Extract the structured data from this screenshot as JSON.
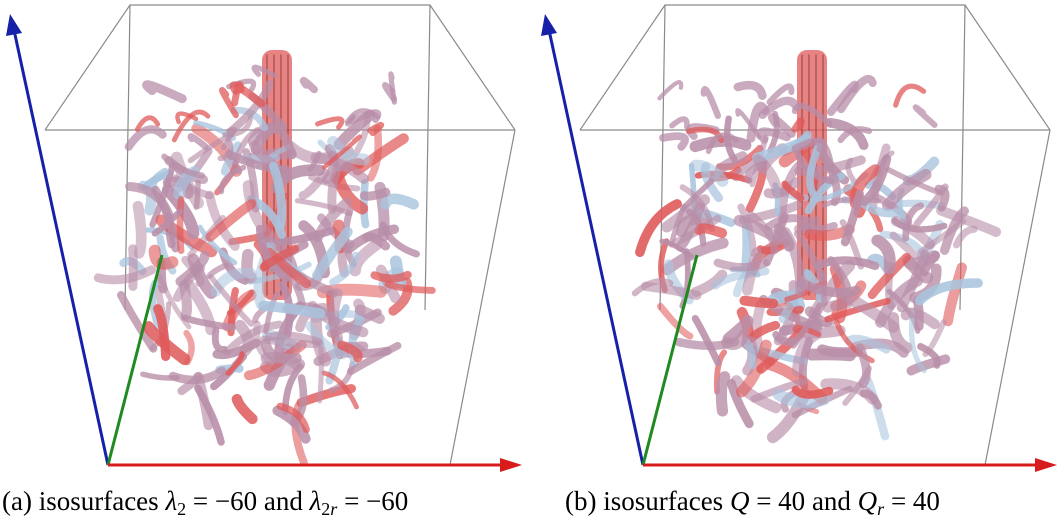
{
  "panels": [
    {
      "caption_label": "(a)",
      "caption_text": "isosurfaces",
      "math_left_symbol": "λ",
      "math_left_sub": "2",
      "math_left_value": " = −60",
      "connector": "and",
      "math_right_symbol": "λ",
      "math_right_sub": "2",
      "math_right_subsub": "r",
      "math_right_value": " = −60"
    },
    {
      "caption_label": "(b)",
      "caption_text": "isosurfaces",
      "math_left_symbol": "Q",
      "math_left_value": " = 40",
      "connector": "and",
      "math_right_symbol": "Q",
      "math_right_sub": "r",
      "math_right_value": " = 40"
    }
  ],
  "colors": {
    "axis_x": "#d81c1c",
    "axis_y": "#1f8a1f",
    "axis_z": "#1620a8",
    "box_edges": "#8a8a8a",
    "vortex_main": "#b88ea8",
    "vortex_core": "#e05a5a",
    "vortex_light": "#a9c4de"
  }
}
